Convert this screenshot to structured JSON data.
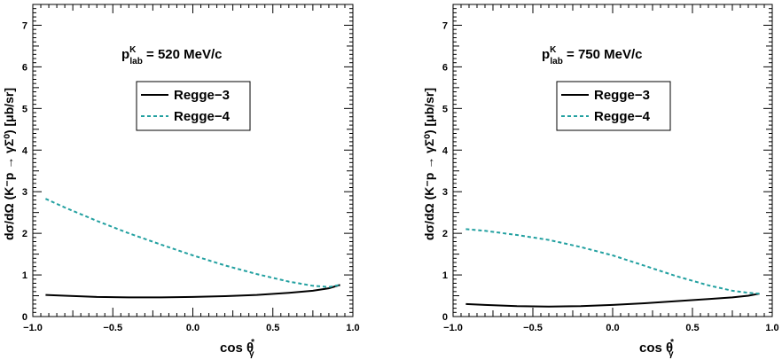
{
  "chart_data": [
    {
      "type": "line",
      "annotation": {
        "main": "p",
        "sup": "K",
        "sub": "lab",
        "value": " = 520 MeV/c"
      },
      "xlabel": {
        "main": "cos θ",
        "sup": "*",
        "sub": "γ"
      },
      "ylabel": "dσ/dΩ (K⁻p → γΣ⁰) [μb/sr]",
      "xlim": [
        -1.0,
        1.0
      ],
      "ylim": [
        0,
        7.5
      ],
      "x_ticks": [
        "−1.0",
        "−0.5",
        "0.0",
        "0.5",
        "1.0"
      ],
      "y_ticks": [
        "0",
        "1",
        "2",
        "3",
        "4",
        "5",
        "6",
        "7"
      ],
      "legend_position": "top-center",
      "series": [
        {
          "name": "Regge−3",
          "style": "solid",
          "color": "#000000",
          "x": [
            -0.92,
            -0.8,
            -0.6,
            -0.4,
            -0.2,
            0.0,
            0.2,
            0.4,
            0.6,
            0.75,
            0.85,
            0.92
          ],
          "y": [
            0.52,
            0.5,
            0.47,
            0.46,
            0.46,
            0.47,
            0.49,
            0.52,
            0.57,
            0.62,
            0.68,
            0.76
          ]
        },
        {
          "name": "Regge−4",
          "style": "dashed",
          "color": "#22a0a0",
          "x": [
            -0.92,
            -0.8,
            -0.6,
            -0.4,
            -0.2,
            0.0,
            0.2,
            0.4,
            0.6,
            0.75,
            0.85,
            0.92
          ],
          "y": [
            2.83,
            2.62,
            2.3,
            2.0,
            1.73,
            1.47,
            1.23,
            1.02,
            0.84,
            0.74,
            0.71,
            0.76
          ]
        }
      ]
    },
    {
      "type": "line",
      "annotation": {
        "main": "p",
        "sup": "K",
        "sub": "lab",
        "value": " = 750 MeV/c"
      },
      "xlabel": {
        "main": "cos θ",
        "sup": "*",
        "sub": "γ"
      },
      "ylabel": "dσ/dΩ (K⁻p → γΣ⁰) [μb/sr]",
      "xlim": [
        -1.0,
        1.0
      ],
      "ylim": [
        0,
        7.5
      ],
      "x_ticks": [
        "−1.0",
        "−0.5",
        "0.0",
        "0.5",
        "1.0"
      ],
      "y_ticks": [
        "0",
        "1",
        "2",
        "3",
        "4",
        "5",
        "6",
        "7"
      ],
      "legend_position": "top-center",
      "series": [
        {
          "name": "Regge−3",
          "style": "solid",
          "color": "#000000",
          "x": [
            -0.92,
            -0.8,
            -0.6,
            -0.4,
            -0.2,
            0.0,
            0.2,
            0.4,
            0.6,
            0.75,
            0.85,
            0.92
          ],
          "y": [
            0.3,
            0.28,
            0.25,
            0.24,
            0.25,
            0.28,
            0.32,
            0.37,
            0.42,
            0.46,
            0.5,
            0.55
          ]
        },
        {
          "name": "Regge−4",
          "style": "dashed",
          "color": "#22a0a0",
          "x": [
            -0.92,
            -0.8,
            -0.6,
            -0.4,
            -0.2,
            0.0,
            0.2,
            0.4,
            0.6,
            0.75,
            0.85,
            0.92
          ],
          "y": [
            2.1,
            2.06,
            1.96,
            1.84,
            1.67,
            1.47,
            1.22,
            0.97,
            0.75,
            0.62,
            0.57,
            0.55
          ]
        }
      ]
    }
  ]
}
